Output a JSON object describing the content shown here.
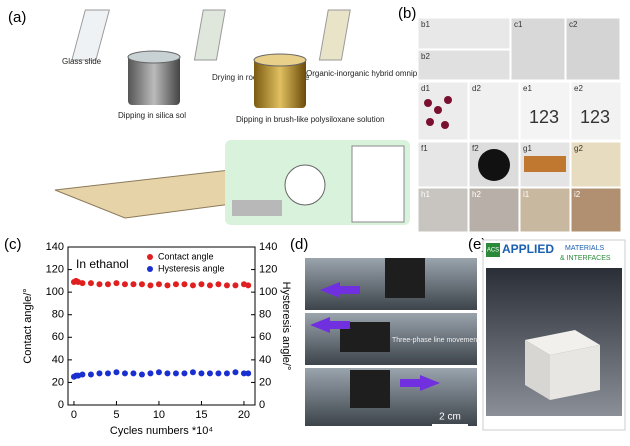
{
  "panels": {
    "a": {
      "label": "(a)",
      "steps": [
        "Glass slide",
        "Dipping in silica sol",
        "Drying in room temperature",
        "Dipping in brush-like polysiloxane solution",
        "Organic-inorganic hybrid omniphobic surfaces"
      ]
    },
    "b": {
      "label": "(b)",
      "cells": [
        "b1",
        "b2",
        "c1",
        "c2",
        "d1",
        "d2",
        "e1",
        "e2",
        "f1",
        "f2",
        "g1",
        "g2",
        "h1",
        "h2",
        "i1",
        "i2"
      ],
      "handwriting": [
        "123",
        "123"
      ]
    },
    "d": {
      "label": "(d)",
      "annotation": "Three-phase line movement",
      "scale": "2 cm"
    },
    "e": {
      "label": "(e)",
      "badge": "ACS",
      "journal": [
        "APPLIED",
        "MATERIALS",
        "& INTERFACES"
      ]
    },
    "c": {
      "label": "(c)"
    }
  },
  "chart_data": {
    "type": "scatter",
    "annotation": "In ethanol",
    "x_label": "Cycles numbers *10⁴",
    "y_label": "Contact angle/°",
    "y2_label": "Hysteresis angle/°",
    "x": [
      0,
      0.25,
      0.5,
      1,
      2,
      3,
      4,
      5,
      6,
      7,
      8,
      9,
      10,
      11,
      12,
      13,
      14,
      15,
      16,
      17,
      18,
      19,
      20,
      20.5
    ],
    "series": [
      {
        "name": "Contact angle",
        "color": "#e02020",
        "axis": "y",
        "values": [
          109,
          110,
          109,
          108,
          108,
          107,
          107,
          108,
          107,
          107,
          107,
          106,
          107,
          106,
          107,
          107,
          106,
          107,
          106,
          107,
          106,
          106,
          107,
          106
        ]
      },
      {
        "name": "Hysteresis angle",
        "color": "#1a2fd0",
        "axis": "y2",
        "values": [
          25,
          26,
          26,
          27,
          27,
          28,
          28,
          29,
          28,
          28,
          27,
          28,
          29,
          28,
          28,
          28,
          29,
          28,
          28,
          28,
          28,
          29,
          28,
          28
        ]
      }
    ],
    "xlim": [
      -0.7,
      21.3
    ],
    "xticks": [
      0,
      5,
      10,
      15,
      20
    ],
    "ylim": [
      0,
      140
    ],
    "yticks": [
      0,
      20,
      40,
      60,
      80,
      100,
      120,
      140
    ],
    "y2lim": [
      0,
      140
    ],
    "y2ticks": [
      0,
      20,
      40,
      60,
      80,
      100,
      120,
      140
    ],
    "legend": "upper-right"
  }
}
